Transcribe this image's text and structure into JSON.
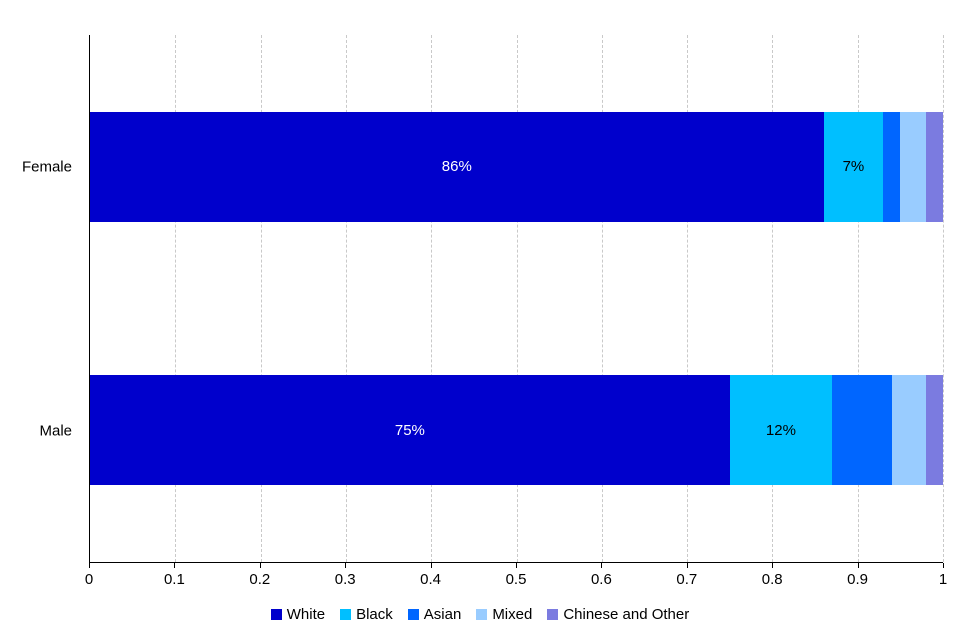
{
  "chart_data": {
    "type": "bar",
    "orientation": "horizontal-stacked",
    "title": "",
    "xlabel": "",
    "ylabel": "",
    "categories": [
      "Female",
      "Male"
    ],
    "series": [
      {
        "name": "White",
        "color": "#0000CC",
        "label_color": "#FFFFFF",
        "values": [
          0.86,
          0.75
        ],
        "labels": [
          "86%",
          "75%"
        ]
      },
      {
        "name": "Black",
        "color": "#00BFFF",
        "label_color": "#000000",
        "values": [
          0.07,
          0.12
        ],
        "labels": [
          "7%",
          "12%"
        ]
      },
      {
        "name": "Asian",
        "color": "#0066FF",
        "label_color": "#FFFFFF",
        "values": [
          0.02,
          0.07
        ],
        "labels": [
          "",
          ""
        ]
      },
      {
        "name": "Mixed",
        "color": "#99CCFF",
        "label_color": "#000000",
        "values": [
          0.03,
          0.04
        ],
        "labels": [
          "",
          ""
        ]
      },
      {
        "name": "Chinese and Other",
        "color": "#7B7BE0",
        "label_color": "#FFFFFF",
        "values": [
          0.02,
          0.02
        ],
        "labels": [
          "",
          ""
        ]
      }
    ],
    "xlim": [
      0,
      1
    ],
    "x_ticks": [
      0,
      0.1,
      0.2,
      0.3,
      0.4,
      0.5,
      0.6,
      0.7,
      0.8,
      0.9,
      1
    ],
    "x_tick_labels": [
      "0",
      "0.1",
      "0.2",
      "0.3",
      "0.4",
      "0.5",
      "0.6",
      "0.7",
      "0.8",
      "0.9",
      "1"
    ],
    "grid": "vertical-dashed",
    "grid_color": "#c9c9c9",
    "axis_color": "#000000",
    "legend_position": "bottom"
  }
}
